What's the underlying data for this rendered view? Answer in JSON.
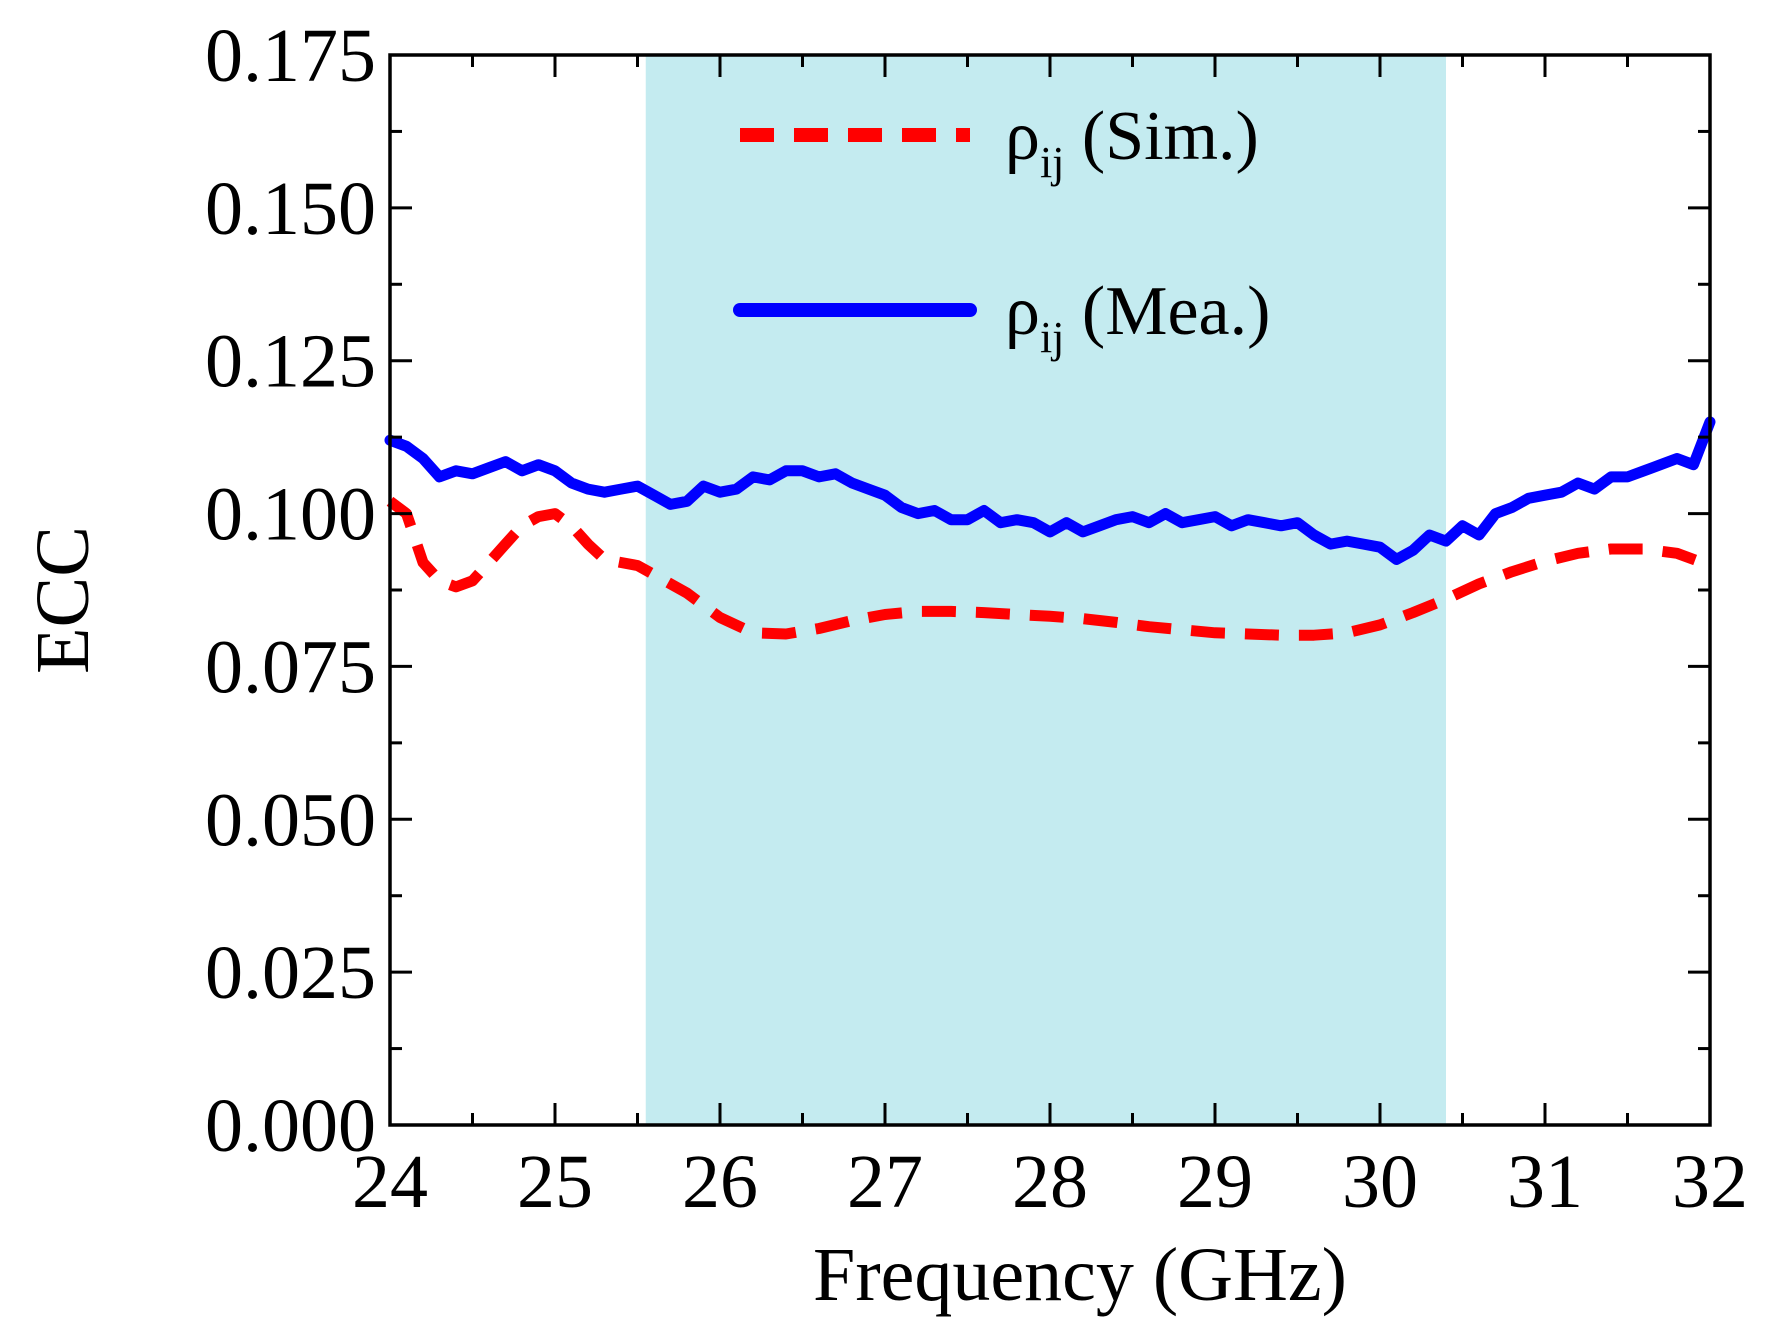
{
  "chart_data": {
    "type": "line",
    "title": "",
    "xlabel": "Frequency (GHz)",
    "ylabel": "ECC",
    "xlim": [
      24,
      32
    ],
    "ylim": [
      0,
      0.175
    ],
    "xticks": [
      "24",
      "25",
      "26",
      "27",
      "28",
      "29",
      "30",
      "31",
      "32"
    ],
    "yticks": [
      "0.000",
      "0.025",
      "0.050",
      "0.075",
      "0.100",
      "0.125",
      "0.150",
      "0.175"
    ],
    "shaded_band": {
      "x_start": 25.55,
      "x_end": 30.4,
      "color": "#c4ebf0"
    },
    "legend_position": "top-right",
    "series": [
      {
        "name": "ρij (Sim.)",
        "legend_main": "ρ",
        "legend_sub": "ij",
        "legend_suffix": " (Sim.)",
        "color": "#ff0000",
        "style": "dashed",
        "x": [
          24.0,
          24.1,
          24.2,
          24.3,
          24.4,
          24.5,
          24.6,
          24.7,
          24.8,
          24.9,
          25.0,
          25.1,
          25.2,
          25.3,
          25.4,
          25.5,
          25.6,
          25.8,
          26.0,
          26.2,
          26.4,
          26.6,
          26.8,
          27.0,
          27.2,
          27.4,
          27.6,
          27.8,
          28.0,
          28.2,
          28.4,
          28.6,
          28.8,
          29.0,
          29.2,
          29.4,
          29.6,
          29.8,
          30.0,
          30.2,
          30.4,
          30.6,
          30.8,
          31.0,
          31.2,
          31.4,
          31.6,
          31.8,
          32.0
        ],
        "values": [
          0.102,
          0.1,
          0.092,
          0.089,
          0.088,
          0.089,
          0.092,
          0.095,
          0.098,
          0.0995,
          0.1,
          0.098,
          0.095,
          0.0925,
          0.092,
          0.0915,
          0.09,
          0.087,
          0.083,
          0.0805,
          0.0803,
          0.0812,
          0.0825,
          0.0835,
          0.084,
          0.084,
          0.0838,
          0.0835,
          0.0832,
          0.0828,
          0.0822,
          0.0815,
          0.081,
          0.0805,
          0.0803,
          0.0801,
          0.0801,
          0.0805,
          0.0818,
          0.0838,
          0.086,
          0.0885,
          0.0905,
          0.0922,
          0.0935,
          0.0942,
          0.0942,
          0.0935,
          0.0915
        ]
      },
      {
        "name": "ρij (Mea.)",
        "legend_main": "ρ",
        "legend_sub": "ij",
        "legend_suffix": " (Mea.)",
        "color": "#0000ff",
        "style": "solid",
        "x": [
          24.0,
          24.1,
          24.2,
          24.3,
          24.4,
          24.5,
          24.6,
          24.7,
          24.8,
          24.9,
          25.0,
          25.1,
          25.2,
          25.3,
          25.4,
          25.5,
          25.6,
          25.7,
          25.8,
          25.9,
          26.0,
          26.1,
          26.2,
          26.3,
          26.4,
          26.5,
          26.6,
          26.7,
          26.8,
          26.9,
          27.0,
          27.1,
          27.2,
          27.3,
          27.4,
          27.5,
          27.6,
          27.7,
          27.8,
          27.9,
          28.0,
          28.1,
          28.2,
          28.3,
          28.4,
          28.5,
          28.6,
          28.7,
          28.8,
          28.9,
          29.0,
          29.1,
          29.2,
          29.3,
          29.4,
          29.5,
          29.6,
          29.7,
          29.8,
          29.9,
          30.0,
          30.1,
          30.2,
          30.3,
          30.4,
          30.5,
          30.6,
          30.7,
          30.8,
          30.9,
          31.0,
          31.1,
          31.2,
          31.3,
          31.4,
          31.5,
          31.6,
          31.7,
          31.8,
          31.9,
          32.0
        ],
        "values": [
          0.112,
          0.111,
          0.109,
          0.106,
          0.107,
          0.1065,
          0.1075,
          0.1085,
          0.107,
          0.108,
          0.107,
          0.105,
          0.104,
          0.1035,
          0.104,
          0.1045,
          0.103,
          0.1015,
          0.102,
          0.1045,
          0.1035,
          0.104,
          0.106,
          0.1055,
          0.107,
          0.107,
          0.106,
          0.1065,
          0.105,
          0.104,
          0.103,
          0.101,
          0.1,
          0.1005,
          0.099,
          0.099,
          0.1005,
          0.0985,
          0.099,
          0.0985,
          0.097,
          0.0985,
          0.097,
          0.098,
          0.099,
          0.0995,
          0.0985,
          0.1,
          0.0985,
          0.099,
          0.0995,
          0.098,
          0.099,
          0.0985,
          0.098,
          0.0985,
          0.0965,
          0.095,
          0.0955,
          0.095,
          0.0945,
          0.0925,
          0.094,
          0.0965,
          0.0955,
          0.098,
          0.0965,
          0.1,
          0.101,
          0.1025,
          0.103,
          0.1035,
          0.105,
          0.104,
          0.106,
          0.106,
          0.107,
          0.108,
          0.109,
          0.108,
          0.115
        ]
      }
    ]
  }
}
